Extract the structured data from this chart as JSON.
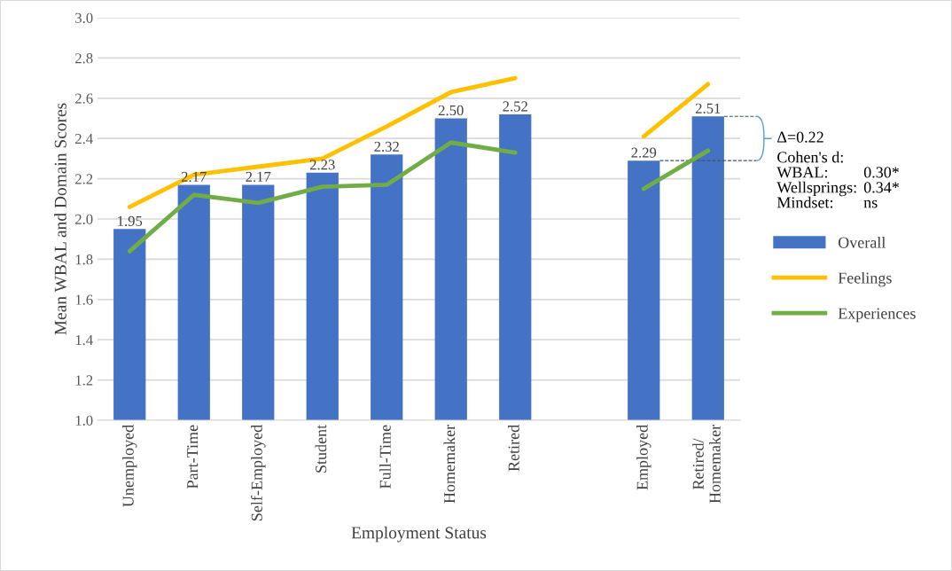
{
  "chart_data": {
    "type": "bar",
    "xlabel": "Employment Status",
    "ylabel": "Mean WBAL and Domain Scores",
    "categories": [
      "Unemployed",
      "Part-Time",
      "Self-Employed",
      "Student",
      "Full-Time",
      "Homemaker",
      "Retired",
      null,
      "Employed",
      "Retired/\nHomemaker"
    ],
    "series": [
      {
        "name": "Overall",
        "color": "#4472c4",
        "values": [
          1.95,
          2.17,
          2.17,
          2.23,
          2.32,
          2.5,
          2.52,
          null,
          2.29,
          2.51
        ],
        "value_labels": [
          "1.95",
          "2.17",
          "2.17",
          "2.23",
          "2.32",
          "2.50",
          "2.52",
          null,
          "2.29",
          "2.51"
        ]
      },
      {
        "name": "Feelings",
        "type": "line",
        "color": "#ffc000",
        "values": [
          2.06,
          2.22,
          2.26,
          2.3,
          2.46,
          2.63,
          2.7,
          null,
          2.41,
          2.67
        ]
      },
      {
        "name": "Experiences",
        "type": "line",
        "color": "#70ad47",
        "values": [
          1.84,
          2.12,
          2.08,
          2.16,
          2.17,
          2.38,
          2.33,
          null,
          2.15,
          2.34
        ]
      }
    ],
    "ylim": [
      1.0,
      3.0
    ],
    "yticks": [
      {
        "value": 1.0,
        "label": "1.0"
      },
      {
        "value": 1.2,
        "label": "1.2"
      },
      {
        "value": 1.4,
        "label": "1.4"
      },
      {
        "value": 1.6,
        "label": "1.6"
      },
      {
        "value": 1.8,
        "label": "1.8"
      },
      {
        "value": 2.0,
        "label": "2.0"
      },
      {
        "value": 2.2,
        "label": "2.2"
      },
      {
        "value": 2.4,
        "label": "2.4"
      },
      {
        "value": 2.6,
        "label": "2.6"
      },
      {
        "value": 2.8,
        "label": "2.8"
      },
      {
        "value": 3.0,
        "label": "3.0"
      }
    ],
    "grid": "y",
    "legend": "right",
    "marker": "none",
    "line_style": "solid",
    "annotations": [
      "Δ=0.22",
      "Cohen's d:",
      "WBAL:",
      "0.30*",
      "Wellsprings:",
      "0.34*",
      "Mindset:",
      "ns"
    ]
  }
}
